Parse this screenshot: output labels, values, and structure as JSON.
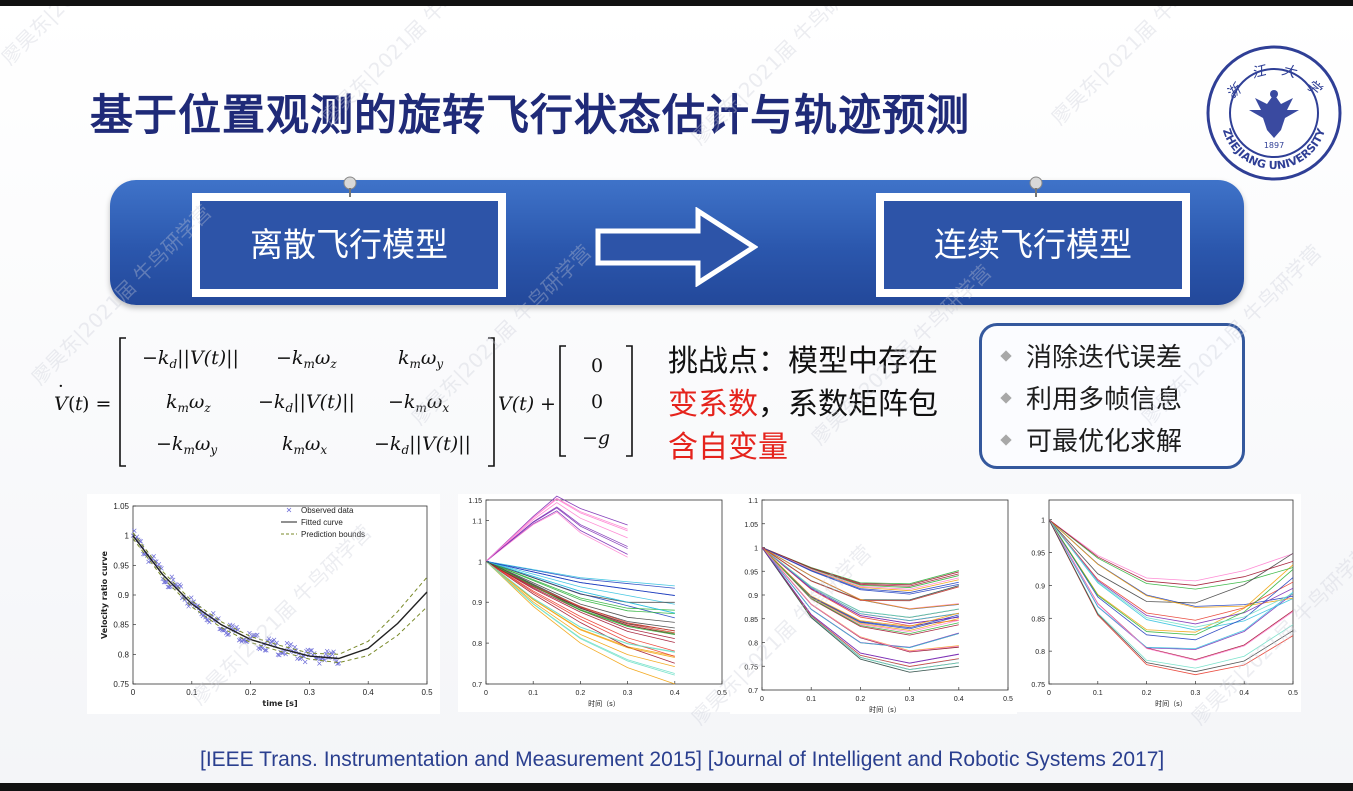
{
  "slide": {
    "title": "基于位置观测的旋转飞行状态估计与轨迹预测",
    "banner": {
      "left_box": "离散飞行模型",
      "right_box": "连续飞行模型"
    },
    "challenge": {
      "prefix": "挑战点：模型中存在",
      "red1": "变系数",
      "mid": "，系数矩阵包",
      "red2": "含自变量"
    },
    "benefits": [
      "消除迭代误差",
      "利用多帧信息",
      "可最优化求解"
    ],
    "references": "[IEEE Trans. Instrumentation and Measurement  2015] [Journal of Intelligent and Robotic Systems 2017]",
    "logo": {
      "chars": [
        "浙",
        "江",
        "大",
        "学"
      ],
      "year": "1897",
      "arc_text": "ZHEJIANG UNIVERSITY"
    },
    "watermark": "廖昊东|2021届 牛鸟研学营"
  },
  "chart_data": [
    {
      "type": "scatter",
      "xlabel": "time [s]",
      "ylabel": "Velocity ratio curve",
      "xlim": [
        0,
        0.5
      ],
      "ylim": [
        0.75,
        1.05
      ],
      "xticks": [
        "0",
        "0.1",
        "0.2",
        "0.3",
        "0.4",
        "0.5"
      ],
      "yticks": [
        "0.75",
        "0.8",
        "0.85",
        "0.9",
        "0.95",
        "1",
        "1.05"
      ],
      "legend": [
        "Observed data",
        "Fitted curve",
        "Prediction bounds"
      ],
      "legend_position": "top-right",
      "series": [
        {
          "name": "Fitted curve",
          "x": [
            0,
            0.05,
            0.1,
            0.15,
            0.2,
            0.25,
            0.3,
            0.35,
            0.4,
            0.45,
            0.5
          ],
          "y": [
            1.0,
            0.935,
            0.885,
            0.85,
            0.825,
            0.81,
            0.797,
            0.793,
            0.81,
            0.852,
            0.905
          ]
        },
        {
          "name": "Prediction bounds",
          "x": [
            0,
            0.05,
            0.1,
            0.15,
            0.2,
            0.25,
            0.3,
            0.35,
            0.4,
            0.45,
            0.5
          ],
          "y": [
            1.005,
            0.94,
            0.89,
            0.855,
            0.83,
            0.815,
            0.802,
            0.8,
            0.822,
            0.872,
            0.93
          ]
        },
        {
          "name": "Prediction bounds",
          "x": [
            0,
            0.05,
            0.1,
            0.15,
            0.2,
            0.25,
            0.3,
            0.35,
            0.4,
            0.45,
            0.5
          ],
          "y": [
            0.995,
            0.93,
            0.88,
            0.845,
            0.82,
            0.805,
            0.792,
            0.786,
            0.798,
            0.832,
            0.88
          ]
        }
      ]
    },
    {
      "type": "line",
      "xlabel": "时间（s）",
      "xlim": [
        0,
        0.5
      ],
      "ylim": [
        0.7,
        1.15
      ],
      "xticks": [
        "0",
        "0.1",
        "0.2",
        "0.3",
        "0.4",
        "0.5"
      ],
      "yticks": [
        "0.7",
        "0.8",
        "0.9",
        "1",
        "1.1",
        "1.15"
      ],
      "series": [
        {
          "x": [
            0,
            0.1,
            0.2,
            0.3,
            0.4
          ],
          "y": [
            1.0,
            0.97,
            0.94,
            0.92,
            0.9
          ]
        },
        {
          "x": [
            0,
            0.1,
            0.2,
            0.3,
            0.4
          ],
          "y": [
            1.0,
            0.93,
            0.87,
            0.82,
            0.79
          ]
        },
        {
          "x": [
            0,
            0.1,
            0.2,
            0.3,
            0.4
          ],
          "y": [
            1.0,
            0.9,
            0.82,
            0.77,
            0.74
          ]
        },
        {
          "x": [
            0,
            0.1,
            0.15,
            0.2,
            0.3
          ],
          "y": [
            1.0,
            1.1,
            1.14,
            1.1,
            1.05
          ]
        },
        {
          "x": [
            0,
            0.1,
            0.2,
            0.3,
            0.4
          ],
          "y": [
            1.0,
            0.95,
            0.9,
            0.87,
            0.86
          ]
        }
      ]
    },
    {
      "type": "line",
      "xlabel": "时间（s）",
      "xlim": [
        0,
        0.5
      ],
      "ylim": [
        0.7,
        1.1
      ],
      "xticks": [
        "0",
        "0.1",
        "0.2",
        "0.3",
        "0.4",
        "0.5"
      ],
      "yticks": [
        "0.7",
        "0.75",
        "0.8",
        "0.85",
        "0.9",
        "0.95",
        "1",
        "1.05",
        "1.1"
      ],
      "series": [
        {
          "x": [
            0,
            0.1,
            0.2,
            0.3,
            0.4
          ],
          "y": [
            1.0,
            0.95,
            0.91,
            0.9,
            0.92
          ]
        },
        {
          "x": [
            0,
            0.1,
            0.2,
            0.3,
            0.4
          ],
          "y": [
            1.0,
            0.92,
            0.87,
            0.86,
            0.88
          ]
        },
        {
          "x": [
            0,
            0.1,
            0.2,
            0.3,
            0.4
          ],
          "y": [
            1.0,
            0.89,
            0.83,
            0.81,
            0.83
          ]
        },
        {
          "x": [
            0,
            0.1,
            0.2,
            0.3,
            0.4
          ],
          "y": [
            1.0,
            0.86,
            0.78,
            0.76,
            0.78
          ]
        }
      ]
    },
    {
      "type": "line",
      "xlabel": "时间（s）",
      "xlim": [
        0,
        0.5
      ],
      "ylim": [
        0.75,
        1.03
      ],
      "xticks": [
        "0",
        "0.1",
        "0.2",
        "0.3",
        "0.4",
        "0.5"
      ],
      "yticks": [
        "0.75",
        "0.8",
        "0.85",
        "0.9",
        "0.95",
        "1"
      ],
      "legend_position": "left",
      "series": [
        {
          "x": [
            0,
            0.1,
            0.2,
            0.3,
            0.4,
            0.5
          ],
          "y": [
            1.0,
            0.94,
            0.9,
            0.89,
            0.9,
            0.92
          ]
        },
        {
          "x": [
            0,
            0.1,
            0.2,
            0.3,
            0.4,
            0.5
          ],
          "y": [
            1.0,
            0.91,
            0.86,
            0.85,
            0.87,
            0.91
          ]
        },
        {
          "x": [
            0,
            0.1,
            0.2,
            0.3,
            0.4,
            0.5
          ],
          "y": [
            1.0,
            0.88,
            0.82,
            0.81,
            0.84,
            0.9
          ]
        },
        {
          "x": [
            0,
            0.1,
            0.2,
            0.3,
            0.4,
            0.5
          ],
          "y": [
            1.0,
            0.86,
            0.79,
            0.78,
            0.8,
            0.85
          ]
        }
      ]
    }
  ]
}
